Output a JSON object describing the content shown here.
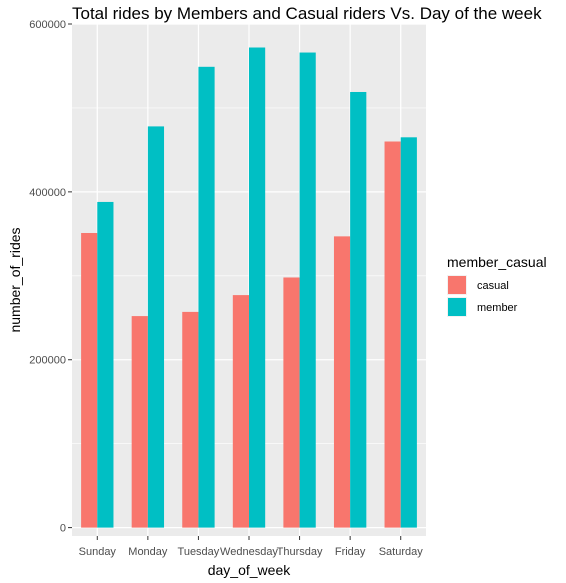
{
  "chart_data": {
    "type": "bar",
    "title": "Total rides by Members and Casual riders Vs. Day of the week",
    "xlabel": "day_of_week",
    "ylabel": "number_of_rides",
    "categories": [
      "Sunday",
      "Monday",
      "Tuesday",
      "Wednesday",
      "Thursday",
      "Friday",
      "Saturday"
    ],
    "series": [
      {
        "name": "casual",
        "color": "#F8766D",
        "values": [
          351000,
          252000,
          257000,
          277000,
          298000,
          347000,
          460000
        ]
      },
      {
        "name": "member",
        "color": "#00BFC4",
        "values": [
          388000,
          478000,
          549000,
          572000,
          566000,
          519000,
          465000
        ]
      }
    ],
    "ylim": [
      -10000,
      600000
    ],
    "yticks": [
      0,
      200000,
      400000,
      600000
    ],
    "ytick_labels": [
      "0",
      "200000",
      "400000",
      "600000"
    ],
    "grid": true,
    "legend": {
      "title": "member_casual",
      "position": "right"
    }
  }
}
